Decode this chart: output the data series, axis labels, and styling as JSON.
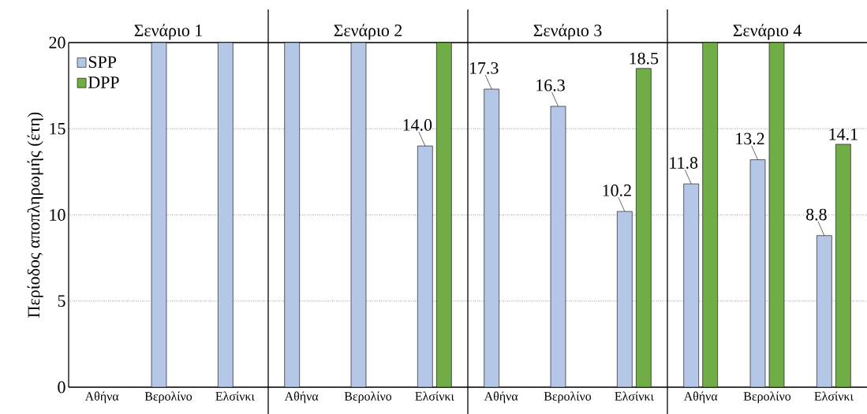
{
  "chart_data": [
    {
      "type": "bar",
      "title": "Σενάριο 1",
      "ylabel": "Περίοδος αποπληρωμής (έτη)",
      "categories": [
        "Αθήνα",
        "Βερολίνο",
        "Ελσίνκι"
      ],
      "ylim": [
        0,
        20
      ],
      "yticks": [
        0,
        5,
        10,
        15,
        20
      ],
      "grid": "y",
      "legend": "top left",
      "series": [
        {
          "name": "SPP",
          "color": "#b4c7e7",
          "values": [
            null,
            20,
            20
          ],
          "value_labels": [
            null,
            null,
            null
          ]
        },
        {
          "name": "DPP",
          "color": "#70ad47",
          "values": [
            null,
            null,
            null
          ],
          "value_labels": [
            null,
            null,
            null
          ]
        }
      ]
    },
    {
      "type": "bar",
      "title": "Σενάριο 2",
      "categories": [
        "Αθήνα",
        "Βερολίνο",
        "Ελσίνκι"
      ],
      "ylim": [
        0,
        20
      ],
      "yticks": [
        0,
        5,
        10,
        15,
        20
      ],
      "grid": "y",
      "tick_labels": "x",
      "series": [
        {
          "color": "#b4c7e7",
          "values": [
            20,
            20,
            14.0
          ],
          "value_labels": [
            null,
            null,
            "14.0"
          ]
        },
        {
          "color": "#70ad47",
          "values": [
            null,
            null,
            20
          ],
          "value_labels": [
            null,
            null,
            null
          ]
        }
      ]
    },
    {
      "type": "bar",
      "title": "Σενάριο 3",
      "categories": [
        "Αθήνα",
        "Βερολίνο",
        "Ελσίνκι"
      ],
      "ylim": [
        0,
        20
      ],
      "yticks": [
        0,
        5,
        10,
        15,
        20
      ],
      "grid": "y",
      "tick_labels": "x",
      "series": [
        {
          "color": "#b4c7e7",
          "values": [
            17.3,
            16.3,
            10.2
          ],
          "value_labels": [
            "17.3",
            "16.3",
            "10.2"
          ]
        },
        {
          "color": "#70ad47",
          "values": [
            null,
            null,
            18.5
          ],
          "value_labels": [
            null,
            null,
            "18.5"
          ]
        }
      ]
    },
    {
      "type": "bar",
      "title": "Σενάριο 4",
      "categories": [
        "Αθήνα",
        "Βερολίνο",
        "Ελσίνκι"
      ],
      "ylim": [
        0,
        20
      ],
      "yticks": [
        0,
        5,
        10,
        15,
        20
      ],
      "grid": "y",
      "tick_labels": "x",
      "series": [
        {
          "color": "#b4c7e7",
          "values": [
            11.8,
            13.2,
            8.8
          ],
          "value_labels": [
            "11.8",
            "13.2",
            "8.8"
          ]
        },
        {
          "color": "#70ad47",
          "values": [
            20,
            20,
            14.1
          ],
          "value_labels": [
            null,
            null,
            "14.1"
          ]
        }
      ]
    }
  ]
}
